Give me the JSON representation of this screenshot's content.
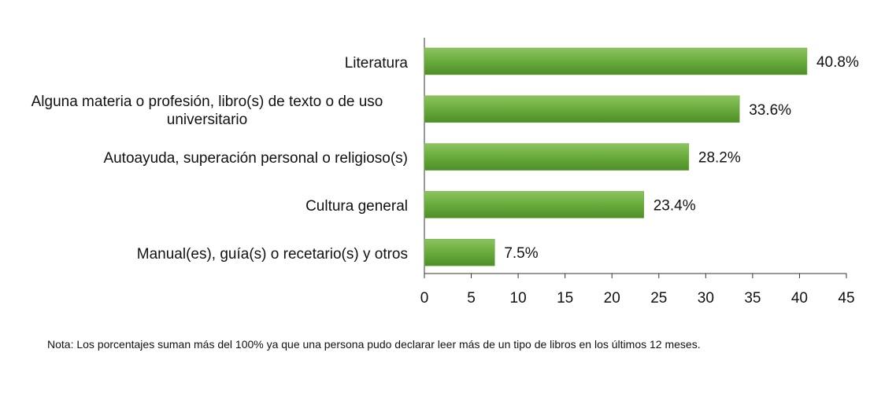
{
  "chart_data": {
    "type": "bar",
    "orientation": "horizontal",
    "categories": [
      "Literatura",
      "Alguna materia o profesión, libro(s) de texto o de uso universitario",
      "Autoayuda, superación personal o religioso(s)",
      "Cultura general",
      "Manual(es), guía(s) o recetario(s) y otros"
    ],
    "values": [
      40.8,
      33.6,
      28.2,
      23.4,
      7.5
    ],
    "value_labels": [
      "40.8%",
      "33.6%",
      "28.2%",
      "23.4%",
      "7.5%"
    ],
    "color": "#6aab3c",
    "xlim": [
      0,
      45
    ],
    "xticks": [
      0,
      5,
      10,
      15,
      20,
      25,
      30,
      35,
      40,
      45
    ],
    "note": "Nota: Los porcentajes suman más del 100% ya que una persona pudo declarar leer más de un tipo de libros en los últimos 12 meses."
  }
}
